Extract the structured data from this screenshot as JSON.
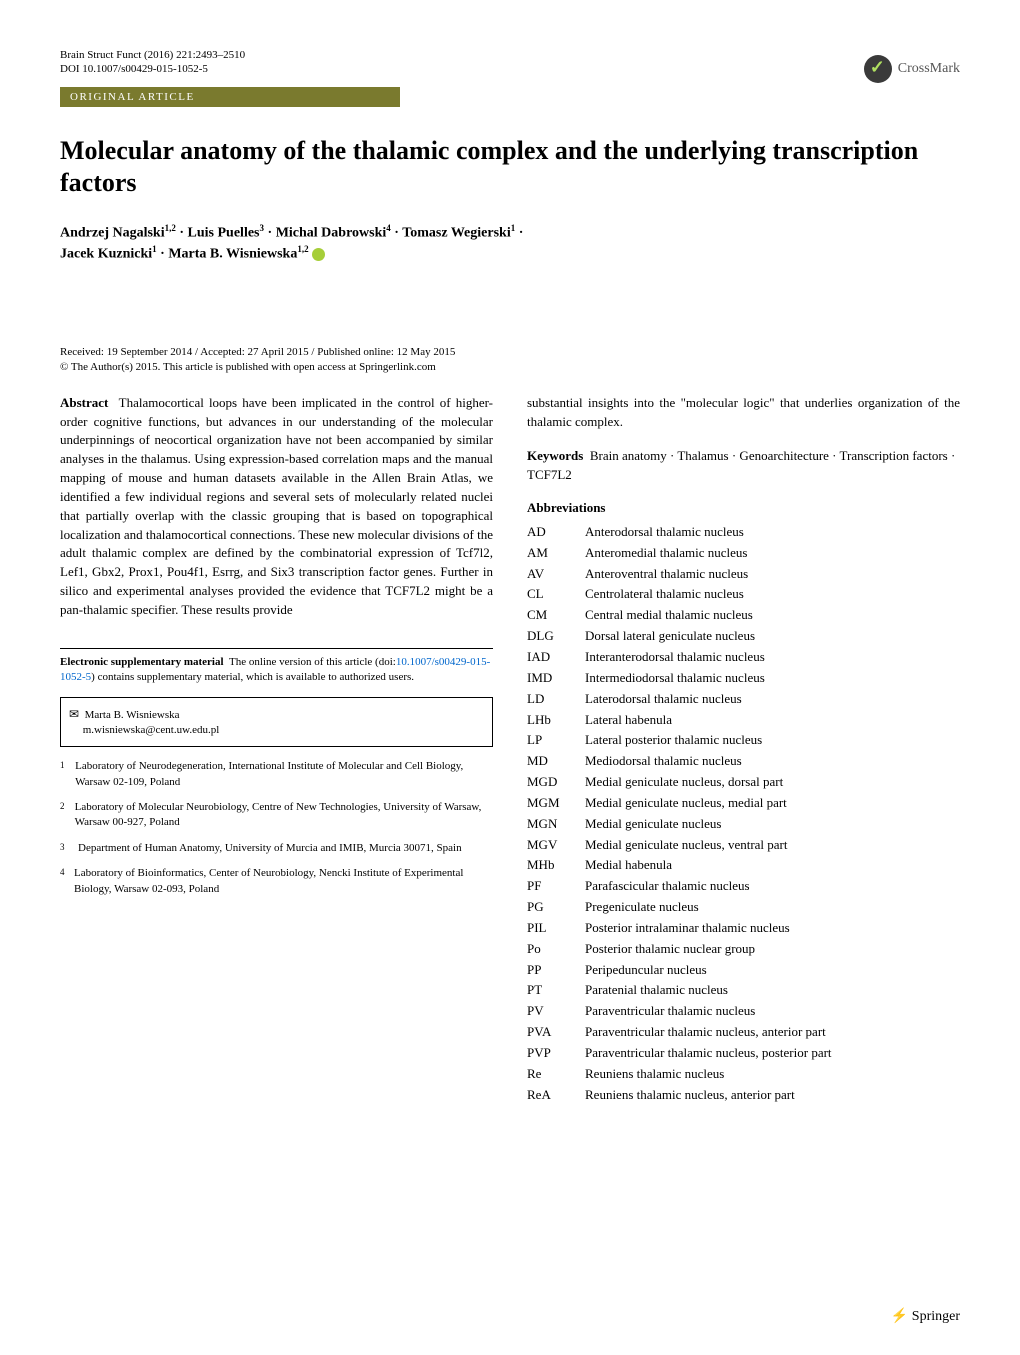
{
  "header": {
    "journal": "Brain Struct Funct (2016) 221:2493–2510",
    "doi_line": "DOI 10.1007/s00429-015-1052-5",
    "article_type": "ORIGINAL ARTICLE",
    "crossmark": "CrossMark"
  },
  "title": "Molecular anatomy of the thalamic complex and the underlying transcription factors",
  "authors_html_parts": {
    "a1": "Andrzej Nagalski",
    "a1_sup": "1,2",
    "a2": "Luis Puelles",
    "a2_sup": "3",
    "a3": "Michal Dabrowski",
    "a3_sup": "4",
    "a4": "Tomasz Wegierski",
    "a4_sup": "1",
    "a5": "Jacek Kuznicki",
    "a5_sup": "1",
    "a6": "Marta B. Wisniewska",
    "a6_sup": "1,2"
  },
  "dates": {
    "line1": "Received: 19 September 2014 / Accepted: 27 April 2015 / Published online: 12 May 2015",
    "line2": "© The Author(s) 2015. This article is published with open access at Springerlink.com"
  },
  "abstract": {
    "label": "Abstract",
    "text": "Thalamocortical loops have been implicated in the control of higher-order cognitive functions, but advances in our understanding of the molecular underpinnings of neocortical organization have not been accompanied by similar analyses in the thalamus. Using expression-based correlation maps and the manual mapping of mouse and human datasets available in the Allen Brain Atlas, we identified a few individual regions and several sets of molecularly related nuclei that partially overlap with the classic grouping that is based on topographical localization and thalamocortical connections. These new molecular divisions of the adult thalamic complex are defined by the combinatorial expression of Tcf7l2, Lef1, Gbx2, Prox1, Pou4f1, Esrrg, and Six3 transcription factor genes. Further in silico and experimental analyses provided the evidence that TCF7L2 might be a pan-thalamic specifier. These results provide",
    "cont": "substantial insights into the \"molecular logic\" that underlies organization of the thalamic complex."
  },
  "keywords": {
    "label": "Keywords",
    "text": "Brain anatomy · Thalamus · Genoarchitecture · Transcription factors · TCF7L2"
  },
  "abbrev_label": "Abbreviations",
  "abbreviations": [
    [
      "AD",
      "Anterodorsal thalamic nucleus"
    ],
    [
      "AM",
      "Anteromedial thalamic nucleus"
    ],
    [
      "AV",
      "Anteroventral thalamic nucleus"
    ],
    [
      "CL",
      "Centrolateral thalamic nucleus"
    ],
    [
      "CM",
      "Central medial thalamic nucleus"
    ],
    [
      "DLG",
      "Dorsal lateral geniculate nucleus"
    ],
    [
      "IAD",
      "Interanterodorsal thalamic nucleus"
    ],
    [
      "IMD",
      "Intermediodorsal thalamic nucleus"
    ],
    [
      "LD",
      "Laterodorsal thalamic nucleus"
    ],
    [
      "LHb",
      "Lateral habenula"
    ],
    [
      "LP",
      "Lateral posterior thalamic nucleus"
    ],
    [
      "MD",
      "Mediodorsal thalamic nucleus"
    ],
    [
      "MGD",
      "Medial geniculate nucleus, dorsal part"
    ],
    [
      "MGM",
      "Medial geniculate nucleus, medial part"
    ],
    [
      "MGN",
      "Medial geniculate nucleus"
    ],
    [
      "MGV",
      "Medial geniculate nucleus, ventral part"
    ],
    [
      "MHb",
      "Medial habenula"
    ],
    [
      "PF",
      "Parafascicular thalamic nucleus"
    ],
    [
      "PG",
      "Pregeniculate nucleus"
    ],
    [
      "PIL",
      "Posterior intralaminar thalamic nucleus"
    ],
    [
      "Po",
      "Posterior thalamic nuclear group"
    ],
    [
      "PP",
      "Peripeduncular nucleus"
    ],
    [
      "PT",
      "Paratenial thalamic nucleus"
    ],
    [
      "PV",
      "Paraventricular thalamic nucleus"
    ],
    [
      "PVA",
      "Paraventricular thalamic nucleus, anterior part"
    ],
    [
      "PVP",
      "Paraventricular thalamic nucleus, posterior part"
    ],
    [
      "Re",
      "Reuniens thalamic nucleus"
    ],
    [
      "ReA",
      "Reuniens thalamic nucleus, anterior part"
    ]
  ],
  "supp": {
    "label": "Electronic supplementary material",
    "text_pre": "The online version of this article (doi:",
    "doi": "10.1007/s00429-015-1052-5",
    "text_post": ") contains supplementary material, which is available to authorized users."
  },
  "correspondence": {
    "name": "Marta B. Wisniewska",
    "email": "m.wisniewska@cent.uw.edu.pl"
  },
  "affiliations": [
    "Laboratory of Neurodegeneration, International Institute of Molecular and Cell Biology, Warsaw 02-109, Poland",
    "Laboratory of Molecular Neurobiology, Centre of New Technologies, University of Warsaw, Warsaw 00-927, Poland",
    "Department of Human Anatomy, University of Murcia and IMIB, Murcia 30071, Spain",
    "Laboratory of Bioinformatics, Center of Neurobiology, Nencki Institute of Experimental Biology, Warsaw 02-093, Poland"
  ],
  "footer": "Springer"
}
